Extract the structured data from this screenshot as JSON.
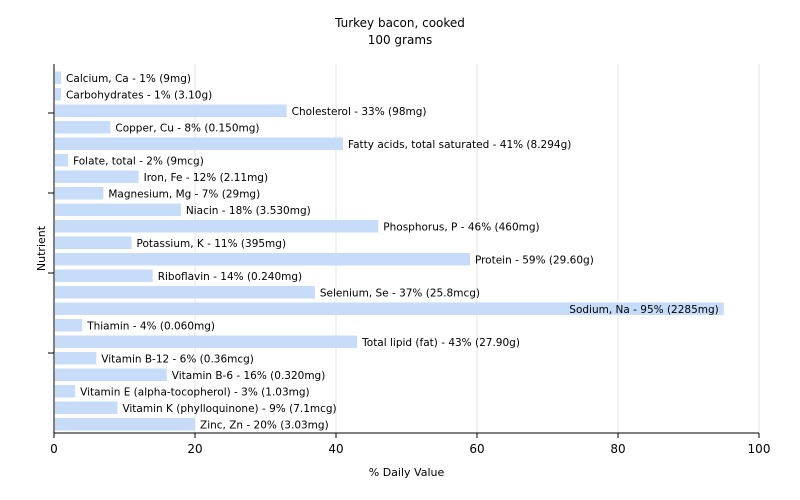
{
  "chart_data": {
    "type": "bar",
    "orientation": "horizontal",
    "title": "Turkey bacon, cooked",
    "subtitle": "100 grams",
    "xlabel": "% Daily Value",
    "ylabel": "Nutrient",
    "xlim": [
      0,
      100
    ],
    "x_ticks": [
      "0",
      "20",
      "40",
      "60",
      "80",
      "100"
    ],
    "grid": true,
    "bar_color": "#c6dcf8",
    "categories": [
      "Calcium, Ca - 1% (9mg)",
      "Carbohydrates - 1% (3.10g)",
      "Cholesterol - 33% (98mg)",
      "Copper, Cu - 8% (0.150mg)",
      "Fatty acids, total saturated - 41% (8.294g)",
      "Folate, total - 2% (9mcg)",
      "Iron, Fe - 12% (2.11mg)",
      "Magnesium, Mg - 7% (29mg)",
      "Niacin - 18% (3.530mg)",
      "Phosphorus, P - 46% (460mg)",
      "Potassium, K - 11% (395mg)",
      "Protein - 59% (29.60g)",
      "Riboflavin - 14% (0.240mg)",
      "Selenium, Se - 37% (25.8mcg)",
      "Sodium, Na - 95% (2285mg)",
      "Thiamin - 4% (0.060mg)",
      "Total lipid (fat) - 43% (27.90g)",
      "Vitamin B-12 - 6% (0.36mcg)",
      "Vitamin B-6 - 16% (0.320mg)",
      "Vitamin E (alpha-tocopherol) - 3% (1.03mg)",
      "Vitamin K (phylloquinone) - 9% (7.1mcg)",
      "Zinc, Zn - 20% (3.03mg)"
    ],
    "values": [
      1,
      1,
      33,
      8,
      41,
      2,
      12,
      7,
      18,
      46,
      11,
      59,
      14,
      37,
      95,
      4,
      43,
      6,
      16,
      3,
      9,
      20
    ]
  }
}
